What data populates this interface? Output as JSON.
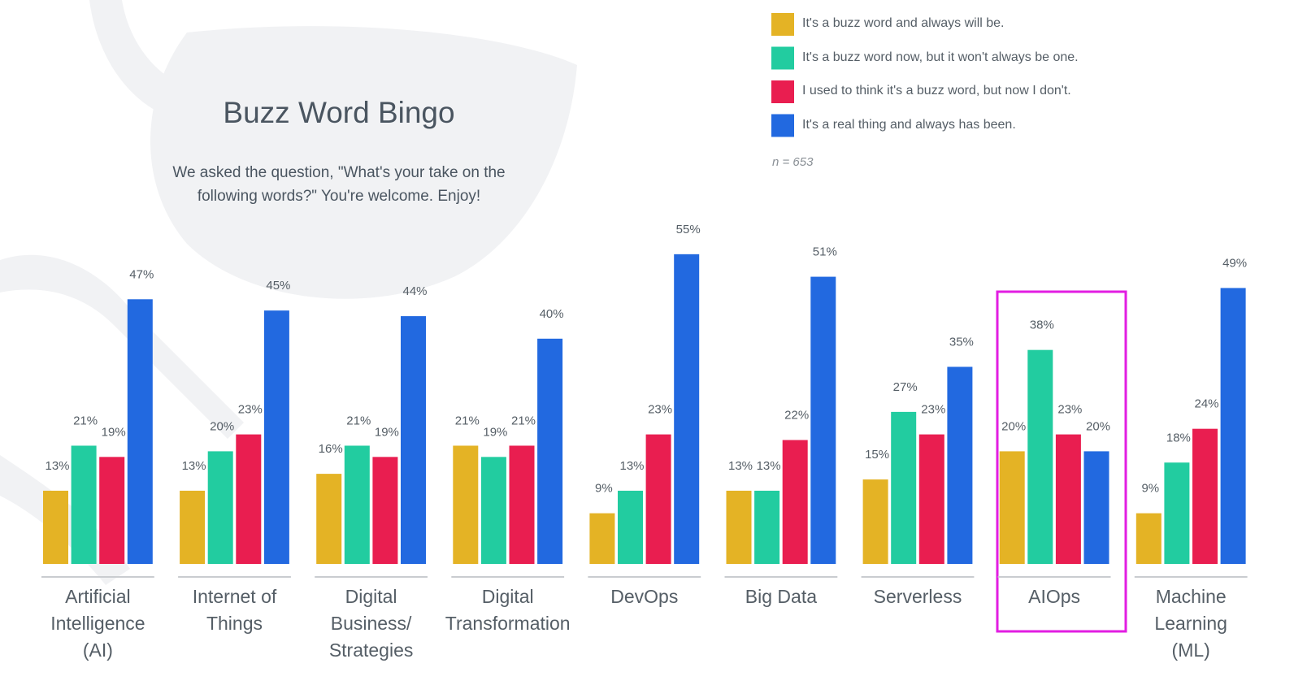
{
  "chart_data": {
    "type": "bar",
    "title": "Buzz Word Bingo",
    "subtitle": "We asked the question, \"What's your take on the\nfollowing words?\" You're welcome. Enjoy!",
    "note": "n = 653",
    "categories": [
      "Artificial\nIntelligence\n(AI)",
      "Internet of\nThings",
      "Digital\nBusiness/\nStrategies",
      "Digital\nTransformation",
      "DevOps",
      "Big Data",
      "Serverless",
      "AIOps",
      "Machine\nLearning\n(ML)"
    ],
    "series": [
      {
        "name": "It's a buzz word and always will be.",
        "color": "#e4b325",
        "values": [
          13,
          13,
          16,
          21,
          9,
          13,
          15,
          20,
          9
        ],
        "value_labels": [
          "13%",
          "13%",
          "16%",
          "21%",
          "9%",
          "13%",
          "15%",
          "20%",
          "9%"
        ]
      },
      {
        "name": "It's a buzz word now, but it won't always be one.",
        "color": "#22cca0",
        "values": [
          21,
          20,
          21,
          19,
          13,
          13,
          27,
          38,
          18
        ],
        "value_labels": [
          "21%",
          "20%",
          "21%",
          "19%",
          "13%",
          "13%",
          "27%",
          "38%",
          "18%"
        ]
      },
      {
        "name": "I used to think it's a buzz word, but now I don't.",
        "color": "#e91e50",
        "values": [
          19,
          23,
          19,
          21,
          23,
          22,
          23,
          23,
          24
        ],
        "value_labels": [
          "19%",
          "23%",
          "19%",
          "21%",
          "23%",
          "22%",
          "23%",
          "23%",
          "24%"
        ]
      },
      {
        "name": "It's a real thing and always has been.",
        "color": "#2269e0",
        "values": [
          47,
          45,
          44,
          40,
          55,
          51,
          35,
          20,
          49
        ],
        "value_labels": [
          "47%",
          "45%",
          "44%",
          "40%",
          "55%",
          "51%",
          "35%",
          "20%",
          "49%"
        ]
      }
    ]
  }
}
